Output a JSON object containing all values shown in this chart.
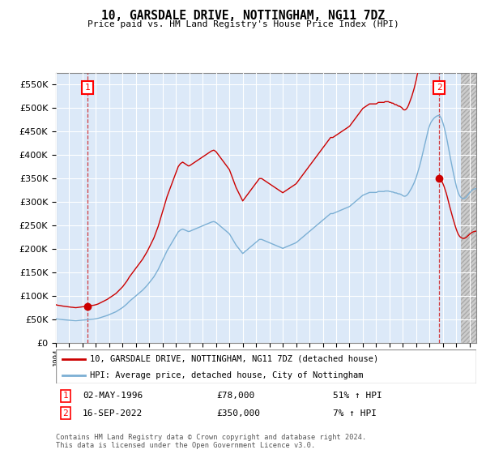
{
  "title": "10, GARSDALE DRIVE, NOTTINGHAM, NG11 7DZ",
  "subtitle": "Price paid vs. HM Land Registry's House Price Index (HPI)",
  "ylim": [
    0,
    575000
  ],
  "yticks": [
    0,
    50000,
    100000,
    150000,
    200000,
    250000,
    300000,
    350000,
    400000,
    450000,
    500000,
    550000
  ],
  "xlim_start": 1994.0,
  "xlim_end": 2025.5,
  "bg_color": "#dce9f8",
  "grid_color": "#ffffff",
  "red_line_color": "#cc0000",
  "blue_line_color": "#7bafd4",
  "marker_color": "#cc0000",
  "marker_size": 6,
  "transaction1": {
    "date_num": 1996.37,
    "price": 78000,
    "label": "1",
    "pct": "51% ↑ HPI",
    "date_str": "02-MAY-1996"
  },
  "transaction2": {
    "date_num": 2022.71,
    "price": 350000,
    "label": "2",
    "pct": "7% ↑ HPI",
    "date_str": "16-SEP-2022"
  },
  "legend_label_red": "10, GARSDALE DRIVE, NOTTINGHAM, NG11 7DZ (detached house)",
  "legend_label_blue": "HPI: Average price, detached house, City of Nottingham",
  "footer": "Contains HM Land Registry data © Crown copyright and database right 2024.\nThis data is licensed under the Open Government Licence v3.0.",
  "hpi_monthly": {
    "start_year": 1994.0,
    "step": 0.08333,
    "values": [
      51000,
      50500,
      50200,
      50000,
      49800,
      49500,
      49200,
      49000,
      48800,
      48600,
      48400,
      48200,
      48000,
      47800,
      47600,
      47500,
      47300,
      47100,
      47000,
      47200,
      47400,
      47600,
      47800,
      48000,
      48200,
      48400,
      48600,
      48800,
      49000,
      49200,
      49400,
      49600,
      49800,
      50000,
      50300,
      50600,
      51000,
      51500,
      52000,
      52800,
      53500,
      54200,
      55000,
      55800,
      56500,
      57200,
      58000,
      59000,
      60000,
      61000,
      62000,
      63000,
      64000,
      65000,
      66000,
      67500,
      69000,
      70500,
      72000,
      73500,
      75000,
      77000,
      79000,
      81000,
      83000,
      85500,
      88000,
      90000,
      92000,
      94000,
      96000,
      98000,
      100000,
      102000,
      104000,
      106000,
      108000,
      110000,
      112000,
      114500,
      117000,
      119500,
      122000,
      125000,
      128000,
      131000,
      134000,
      137000,
      140000,
      144000,
      148000,
      152000,
      156000,
      161000,
      166000,
      171000,
      176000,
      181000,
      186000,
      191000,
      196000,
      200000,
      204000,
      208000,
      212000,
      216000,
      220000,
      224000,
      228000,
      232000,
      236000,
      238000,
      240000,
      241000,
      242000,
      241000,
      240000,
      239000,
      238000,
      237000,
      237000,
      238000,
      239000,
      240000,
      241000,
      242000,
      243000,
      244000,
      245000,
      246000,
      247000,
      248000,
      249000,
      250000,
      251000,
      252000,
      253000,
      254000,
      255000,
      256000,
      257000,
      257500,
      258000,
      257000,
      256000,
      254000,
      252000,
      250000,
      248000,
      246000,
      244000,
      242000,
      240000,
      238000,
      236000,
      234000,
      232000,
      228000,
      224000,
      220000,
      216000,
      212000,
      208000,
      205000,
      202000,
      199000,
      196000,
      193000,
      190000,
      192000,
      194000,
      196000,
      198000,
      200000,
      202000,
      204000,
      206000,
      208000,
      210000,
      212000,
      214000,
      216000,
      218000,
      220000,
      220000,
      220000,
      219000,
      218000,
      217000,
      216000,
      215000,
      214000,
      213000,
      212000,
      211000,
      210000,
      209000,
      208000,
      207000,
      206000,
      205000,
      204000,
      203000,
      202000,
      201000,
      202000,
      203000,
      204000,
      205000,
      206000,
      207000,
      208000,
      209000,
      210000,
      211000,
      212000,
      213000,
      215000,
      217000,
      219000,
      221000,
      223000,
      225000,
      227000,
      229000,
      231000,
      233000,
      235000,
      237000,
      239000,
      241000,
      243000,
      245000,
      247000,
      249000,
      251000,
      253000,
      255000,
      257000,
      259000,
      261000,
      263000,
      265000,
      267000,
      269000,
      271000,
      273000,
      275000,
      275000,
      275000,
      276000,
      277000,
      278000,
      279000,
      280000,
      281000,
      282000,
      283000,
      284000,
      285000,
      286000,
      287000,
      288000,
      289000,
      290000,
      292000,
      294000,
      296000,
      298000,
      300000,
      302000,
      304000,
      306000,
      308000,
      310000,
      312000,
      314000,
      315000,
      316000,
      317000,
      318000,
      319000,
      320000,
      320000,
      320000,
      320000,
      320000,
      320000,
      320000,
      321000,
      322000,
      322000,
      322000,
      322000,
      322000,
      322000,
      323000,
      323000,
      323000,
      323000,
      322000,
      322000,
      321000,
      321000,
      320000,
      319000,
      319000,
      318000,
      317000,
      317000,
      316000,
      315000,
      313000,
      312000,
      312000,
      313000,
      315000,
      318000,
      322000,
      326000,
      330000,
      335000,
      340000,
      346000,
      352000,
      360000,
      368000,
      376000,
      385000,
      395000,
      405000,
      415000,
      425000,
      435000,
      445000,
      455000,
      462000,
      468000,
      472000,
      475000,
      478000,
      480000,
      482000,
      483000,
      484000,
      483000,
      480000,
      475000,
      468000,
      460000,
      450000,
      440000,
      428000,
      415000,
      402000,
      390000,
      378000,
      366000,
      355000,
      344000,
      334000,
      325000,
      318000,
      313000,
      310000,
      308000,
      307000,
      307000,
      308000,
      310000,
      313000,
      316000,
      319000,
      322000,
      324000,
      326000,
      327000,
      328000,
      328000,
      328000
    ]
  },
  "xtick_years": [
    1994,
    1995,
    1996,
    1997,
    1998,
    1999,
    2000,
    2001,
    2002,
    2003,
    2004,
    2005,
    2006,
    2007,
    2008,
    2009,
    2010,
    2011,
    2012,
    2013,
    2014,
    2015,
    2016,
    2017,
    2018,
    2019,
    2020,
    2021,
    2022,
    2023,
    2024,
    2025
  ]
}
